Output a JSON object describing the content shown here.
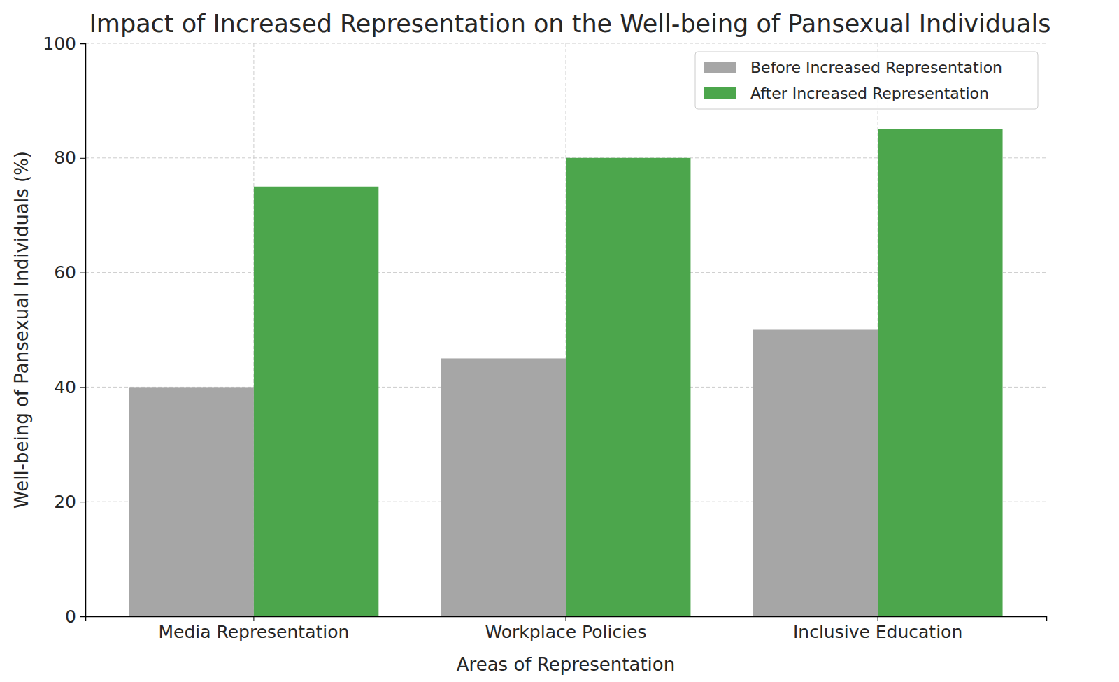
{
  "chart_data": {
    "type": "bar",
    "title": "Impact of Increased Representation on the Well-being of Pansexual Individuals",
    "x_label": "Areas of Representation",
    "y_label": "Well-being of Pansexual Individuals (%)",
    "categories": [
      "Media Representation",
      "Workplace Policies",
      "Inclusive Education"
    ],
    "series": [
      {
        "name": "Before Increased Representation",
        "color": "#a6a6a6",
        "values": [
          40,
          45,
          50
        ]
      },
      {
        "name": "After Increased Representation",
        "color": "#4ca64c",
        "values": [
          75,
          80,
          85
        ]
      }
    ],
    "ylim": [
      0,
      100
    ],
    "yticks": [
      0,
      20,
      40,
      60,
      80,
      100
    ],
    "grid": true,
    "legend": "upper right"
  }
}
